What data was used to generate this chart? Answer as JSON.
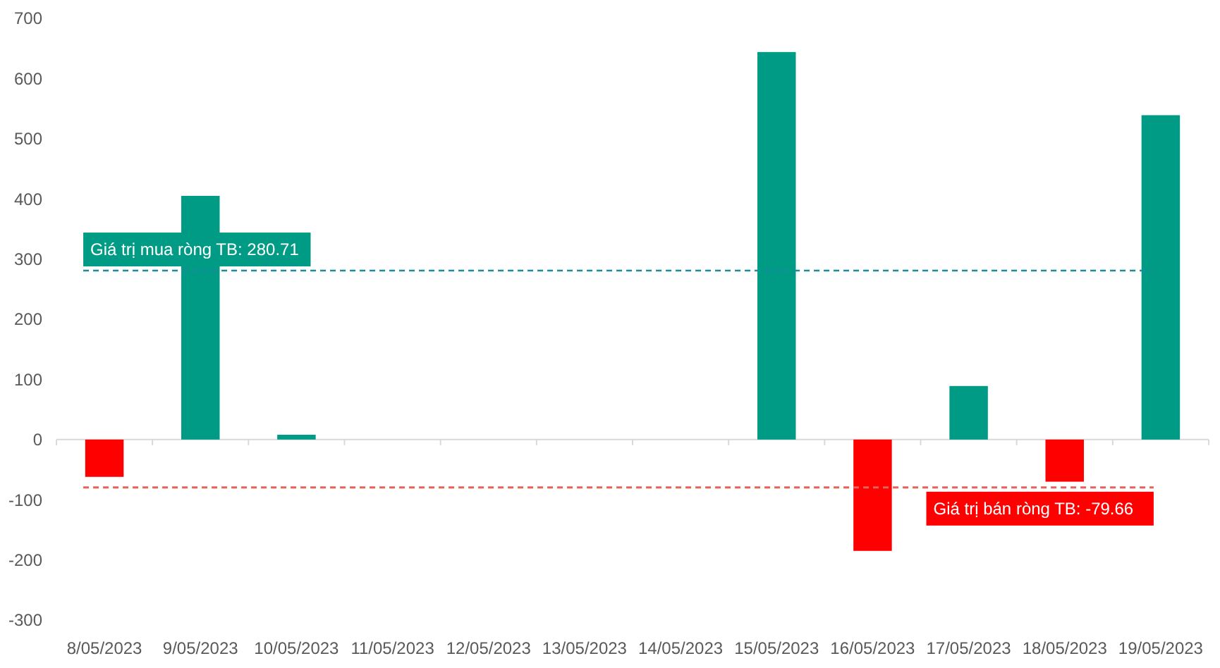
{
  "chart_data": {
    "type": "bar",
    "categories": [
      "8/05/2023",
      "9/05/2023",
      "10/05/2023",
      "11/05/2023",
      "12/05/2023",
      "13/05/2023",
      "14/05/2023",
      "15/05/2023",
      "16/05/2023",
      "17/05/2023",
      "18/05/2023",
      "19/05/2023"
    ],
    "values": [
      -62,
      405,
      8,
      0,
      0,
      0,
      0,
      644,
      -185,
      89,
      -70,
      539
    ],
    "colors": [
      "#ff0000",
      "#009b84",
      "#009b84",
      "#009b84",
      "#009b84",
      "#009b84",
      "#009b84",
      "#009b84",
      "#ff0000",
      "#009b84",
      "#ff0000",
      "#009b84"
    ],
    "ylim": [
      -300,
      700
    ],
    "yticks": [
      -300,
      -200,
      -100,
      0,
      100,
      200,
      300,
      400,
      500,
      600,
      700
    ],
    "ref_lines": [
      {
        "axis": "y",
        "value": 280.71,
        "label": "Giá trị mua ròng TB: 280.71",
        "color": "#1a8c9c",
        "line_style": "dashed"
      },
      {
        "axis": "y",
        "value": -79.66,
        "label": "Giá trị bán ròng TB: -79.66",
        "color": "#e8615a",
        "line_style": "dashed"
      }
    ]
  }
}
